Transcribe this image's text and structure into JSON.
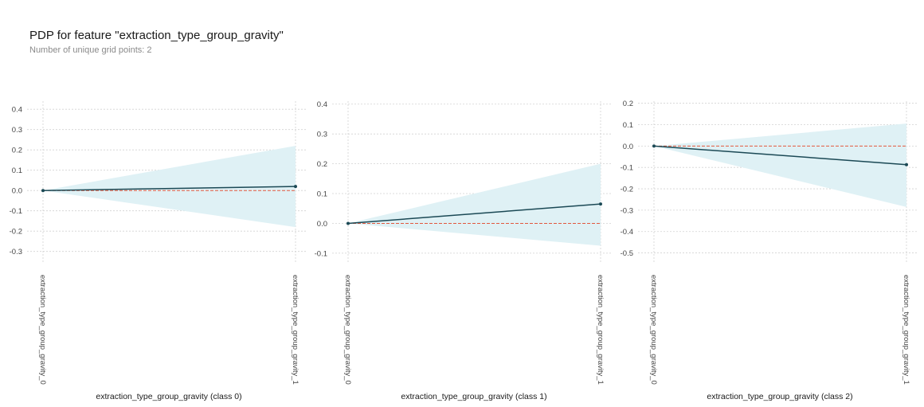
{
  "header": {
    "title": "PDP for feature \"extraction_type_group_gravity\"",
    "subtitle": "Number of unique grid points: 2"
  },
  "colors": {
    "line": "#1b4955",
    "band": "#dff1f5",
    "zero_line": "#e2583e",
    "grid": "#d2d2d2"
  },
  "chart_data": [
    {
      "type": "line",
      "categories": [
        "extraction_type_group_gravity_0",
        "extraction_type_group_gravity_1"
      ],
      "series": [
        {
          "values": [
            0.0,
            0.02
          ]
        }
      ],
      "band_upper": [
        0.0,
        0.22
      ],
      "band_lower": [
        0.0,
        -0.18
      ],
      "xlabel": "extraction_type_group_gravity (class 0)",
      "ylim": [
        -0.36,
        0.44
      ],
      "yticks": [
        "0.4",
        "0.3",
        "0.2",
        "0.1",
        "0.0",
        "-0.1",
        "-0.2",
        "-0.3"
      ],
      "ytick_values": [
        0.4,
        0.3,
        0.2,
        0.1,
        0.0,
        -0.1,
        -0.2,
        -0.3
      ],
      "grid": true
    },
    {
      "type": "line",
      "categories": [
        "extraction_type_group_gravity_0",
        "extraction_type_group_gravity_1"
      ],
      "series": [
        {
          "values": [
            0.0,
            0.065
          ]
        }
      ],
      "band_upper": [
        0.0,
        0.2
      ],
      "band_lower": [
        0.0,
        -0.075
      ],
      "xlabel": "extraction_type_group_gravity (class 1)",
      "ylim": [
        -0.135,
        0.41
      ],
      "yticks": [
        "0.4",
        "0.3",
        "0.2",
        "0.1",
        "0.0",
        "-0.1"
      ],
      "ytick_values": [
        0.4,
        0.3,
        0.2,
        0.1,
        0.0,
        -0.1
      ],
      "grid": true
    },
    {
      "type": "line",
      "categories": [
        "extraction_type_group_gravity_0",
        "extraction_type_group_gravity_1"
      ],
      "series": [
        {
          "values": [
            0.0,
            -0.087
          ]
        }
      ],
      "band_upper": [
        0.0,
        0.105
      ],
      "band_lower": [
        0.0,
        -0.285
      ],
      "xlabel": "extraction_type_group_gravity (class 2)",
      "ylim": [
        -0.55,
        0.21
      ],
      "yticks": [
        "0.2",
        "0.1",
        "0.0",
        "-0.1",
        "-0.2",
        "-0.3",
        "-0.4",
        "-0.5"
      ],
      "ytick_values": [
        0.2,
        0.1,
        0.0,
        -0.1,
        -0.2,
        -0.3,
        -0.4,
        -0.5
      ],
      "grid": true
    }
  ]
}
